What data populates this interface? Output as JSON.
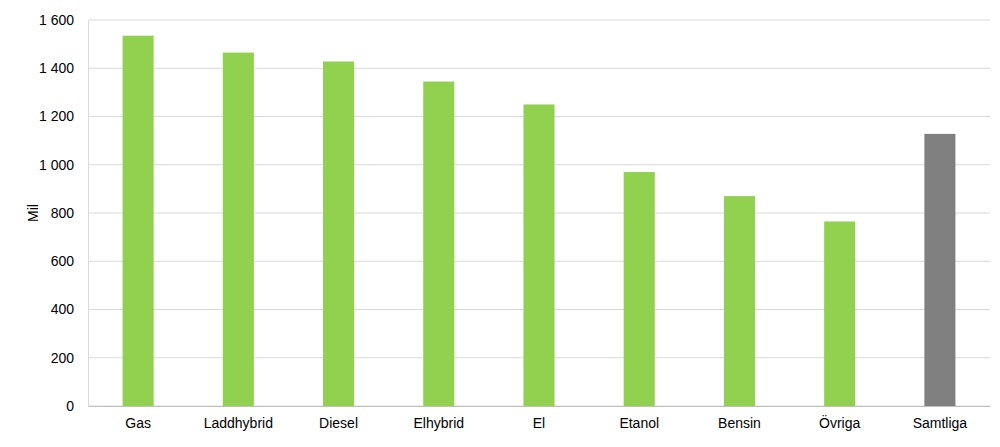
{
  "chart_data": {
    "type": "bar",
    "y_label": "Mil",
    "categories": [
      "Gas",
      "Laddhybrid",
      "Diesel",
      "Elhybrid",
      "El",
      "Etanol",
      "Bensin",
      "Övriga",
      "Samtliga"
    ],
    "values": [
      1535,
      1465,
      1428,
      1345,
      1250,
      970,
      870,
      765,
      1128
    ],
    "colors": [
      "#92d050",
      "#92d050",
      "#92d050",
      "#92d050",
      "#92d050",
      "#92d050",
      "#92d050",
      "#92d050",
      "#808080"
    ],
    "ylim": [
      0,
      1600
    ],
    "yticks": [
      0,
      200,
      400,
      600,
      800,
      {
        "value": 1000,
        "label": "1 000"
      },
      {
        "value": 1200,
        "label": "1 200"
      },
      {
        "value": 1400,
        "label": "1 400"
      },
      {
        "value": 1600,
        "label": "1 600"
      }
    ],
    "grid": true
  }
}
